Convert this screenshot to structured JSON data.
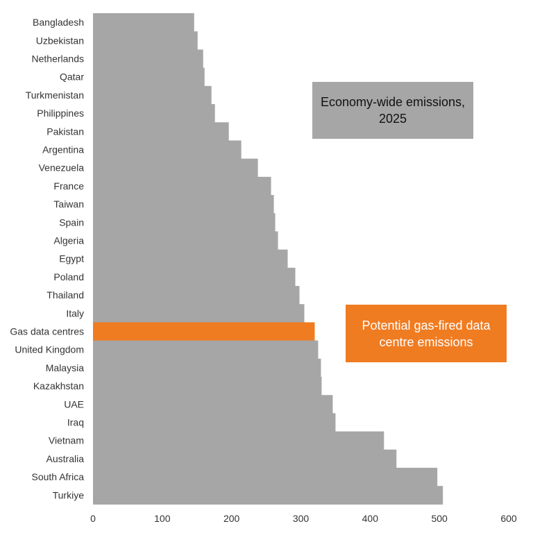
{
  "chart_data": {
    "type": "bar",
    "orientation": "horizontal",
    "categories": [
      "Bangladesh",
      "Uzbekistan",
      "Netherlands",
      "Qatar",
      "Turkmenistan",
      "Philippines",
      "Pakistan",
      "Argentina",
      "Venezuela",
      "France",
      "Taiwan",
      "Spain",
      "Algeria",
      "Egypt",
      "Poland",
      "Thailand",
      "Italy",
      "Gas data centres",
      "United Kingdom",
      "Malaysia",
      "Kazakhstan",
      "UAE",
      "Iraq",
      "Vietnam",
      "Australia",
      "South Africa",
      "Turkiye"
    ],
    "values": [
      146,
      151,
      159,
      161,
      171,
      176,
      196,
      214,
      238,
      257,
      261,
      263,
      267,
      281,
      292,
      298,
      305,
      320,
      325,
      329,
      330,
      346,
      350,
      420,
      438,
      497,
      505
    ],
    "highlight_index": 17,
    "colors": {
      "default": "#a6a6a6",
      "highlight": "#f07c22"
    },
    "xlim": [
      0,
      600
    ],
    "xticks": [
      0,
      100,
      200,
      300,
      400,
      500,
      600
    ],
    "grid": false,
    "legend": [
      {
        "label": "Economy-wide emissions, 2025",
        "color": "#a6a6a6",
        "placement": "upper-right"
      },
      {
        "label": "Potential gas-fired data centre emissions",
        "color": "#f07c22",
        "placement": "middle-right"
      }
    ]
  }
}
